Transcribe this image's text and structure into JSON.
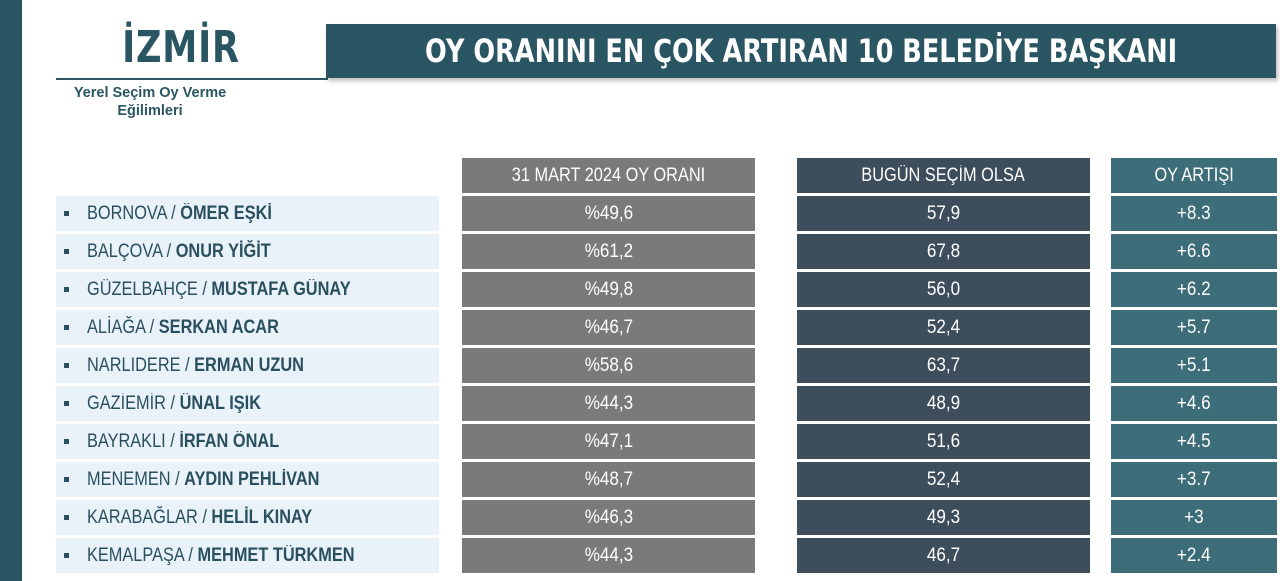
{
  "brand": {
    "name": "İZMİR",
    "subtitle_line1": "Yerel Seçim Oy Verme",
    "subtitle_line2": "Eğilimleri"
  },
  "title": "OY ORANINI EN ÇOK ARTIRAN 10 BELEDİYE BAŞKANI",
  "columns": {
    "vote_2024": "31 MART 2024 OY ORANI",
    "today": "BUGÜN SEÇİM OLSA",
    "increase": "OY ARTIŞI"
  },
  "colors": {
    "accent": "#2a5563",
    "grey": "#7a7a7a",
    "navy": "#3d4d5c",
    "teal": "#3c6d78",
    "row_bg": "#e8f2f8"
  },
  "rows": [
    {
      "district": "BORNOVA",
      "mayor": "ÖMER EŞKİ",
      "vote_2024": "%49,6",
      "today": "57,9",
      "increase": "+8.3"
    },
    {
      "district": "BALÇOVA",
      "mayor": "ONUR YİĞİT",
      "vote_2024": "%61,2",
      "today": "67,8",
      "increase": "+6.6"
    },
    {
      "district": "GÜZELBAHÇE",
      "mayor": "MUSTAFA GÜNAY",
      "vote_2024": "%49,8",
      "today": "56,0",
      "increase": "+6.2"
    },
    {
      "district": "ALİAĞA",
      "mayor": "SERKAN ACAR",
      "vote_2024": "%46,7",
      "today": "52,4",
      "increase": "+5.7"
    },
    {
      "district": "NARLIDERE",
      "mayor": "ERMAN UZUN",
      "vote_2024": "%58,6",
      "today": "63,7",
      "increase": "+5.1"
    },
    {
      "district": "GAZİEMİR",
      "mayor": "ÜNAL IŞIK",
      "vote_2024": "%44,3",
      "today": "48,9",
      "increase": "+4.6"
    },
    {
      "district": "BAYRAKLI",
      "mayor": "İRFAN ÖNAL",
      "vote_2024": "%47,1",
      "today": "51,6",
      "increase": "+4.5"
    },
    {
      "district": "MENEMEN",
      "mayor": "AYDIN PEHLİVAN",
      "vote_2024": "%48,7",
      "today": "52,4",
      "increase": "+3.7"
    },
    {
      "district": "KARABAĞLAR",
      "mayor": "HELİL KINAY",
      "vote_2024": "%46,3",
      "today": "49,3",
      "increase": "+3"
    },
    {
      "district": "KEMALPAŞA",
      "mayor": "MEHMET TÜRKMEN",
      "vote_2024": "%44,3",
      "today": "46,7",
      "increase": "+2.4"
    }
  ]
}
